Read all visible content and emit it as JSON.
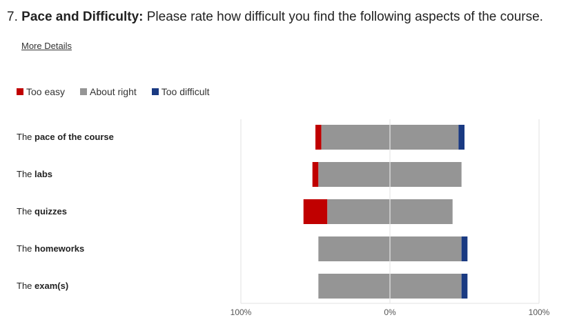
{
  "question": {
    "number": "7.",
    "title": "Pace and Difficulty:",
    "text": "Please rate how difficult you find the following aspects of the course."
  },
  "more_details_label": "More Details",
  "colors": {
    "too_easy": "#c00000",
    "about_right": "#959595",
    "too_difficult": "#1a3a82"
  },
  "chart_data": {
    "type": "bar",
    "orientation": "horizontal-diverging-stacked",
    "title": "",
    "xlabel": "",
    "ylabel": "",
    "xlim": [
      -100,
      100
    ],
    "x_tick_labels": [
      "100%",
      "0%",
      "100%"
    ],
    "legend_position": "top-left",
    "grid": true,
    "categories": [
      {
        "prefix": "The ",
        "bold": "pace of the course",
        "suffix": ""
      },
      {
        "prefix": "The ",
        "bold": "labs",
        "suffix": ""
      },
      {
        "prefix": "The ",
        "bold": "quizzes",
        "suffix": ""
      },
      {
        "prefix": "The ",
        "bold": "homeworks",
        "suffix": ""
      },
      {
        "prefix": "The ",
        "bold": "exam(s)",
        "suffix": ""
      }
    ],
    "series": [
      {
        "name": "Too easy",
        "values": [
          4,
          4,
          16,
          0,
          0
        ]
      },
      {
        "name": "About right",
        "values": [
          92,
          96,
          84,
          96,
          96
        ]
      },
      {
        "name": "Too difficult",
        "values": [
          4,
          0,
          0,
          4,
          4
        ]
      }
    ]
  }
}
